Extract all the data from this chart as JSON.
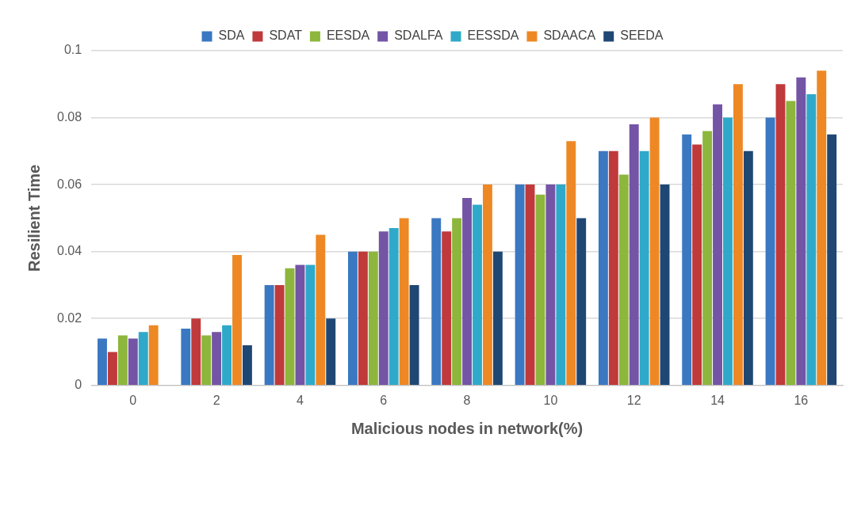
{
  "chart_data": {
    "type": "bar",
    "xlabel": "Malicious nodes in network(%)",
    "ylabel": "Resilient Time",
    "categories": [
      "0",
      "2",
      "4",
      "6",
      "8",
      "10",
      "12",
      "14",
      "16"
    ],
    "series": [
      {
        "name": "SDA",
        "color": "#3a78c2",
        "values": [
          0.014,
          0.017,
          0.03,
          0.04,
          0.05,
          0.06,
          0.07,
          0.075,
          0.08
        ]
      },
      {
        "name": "SDAT",
        "color": "#c0393b",
        "values": [
          0.01,
          0.02,
          0.03,
          0.04,
          0.046,
          0.06,
          0.07,
          0.072,
          0.09
        ]
      },
      {
        "name": "EESDA",
        "color": "#8db63c",
        "values": [
          0.015,
          0.015,
          0.035,
          0.04,
          0.05,
          0.057,
          0.063,
          0.076,
          0.085
        ]
      },
      {
        "name": "SDALFA",
        "color": "#7354a5",
        "values": [
          0.014,
          0.016,
          0.036,
          0.046,
          0.056,
          0.06,
          0.078,
          0.084,
          0.092
        ]
      },
      {
        "name": "EESSDA",
        "color": "#2fa9c9",
        "values": [
          0.016,
          0.018,
          0.036,
          0.047,
          0.054,
          0.06,
          0.07,
          0.08,
          0.087
        ]
      },
      {
        "name": "SDAACA",
        "color": "#ee8824",
        "values": [
          0.018,
          0.039,
          0.045,
          0.05,
          0.06,
          0.073,
          0.08,
          0.09,
          0.094
        ]
      },
      {
        "name": "SEEDA",
        "color": "#1f4774",
        "values": [
          0,
          0.012,
          0.02,
          0.03,
          0.04,
          0.05,
          0.06,
          0.07,
          0.075
        ]
      }
    ],
    "ylim": [
      0,
      0.1
    ],
    "yticks": [
      0,
      0.02,
      0.04,
      0.06,
      0.08,
      0.1
    ],
    "grid": "y",
    "legend": "top"
  }
}
